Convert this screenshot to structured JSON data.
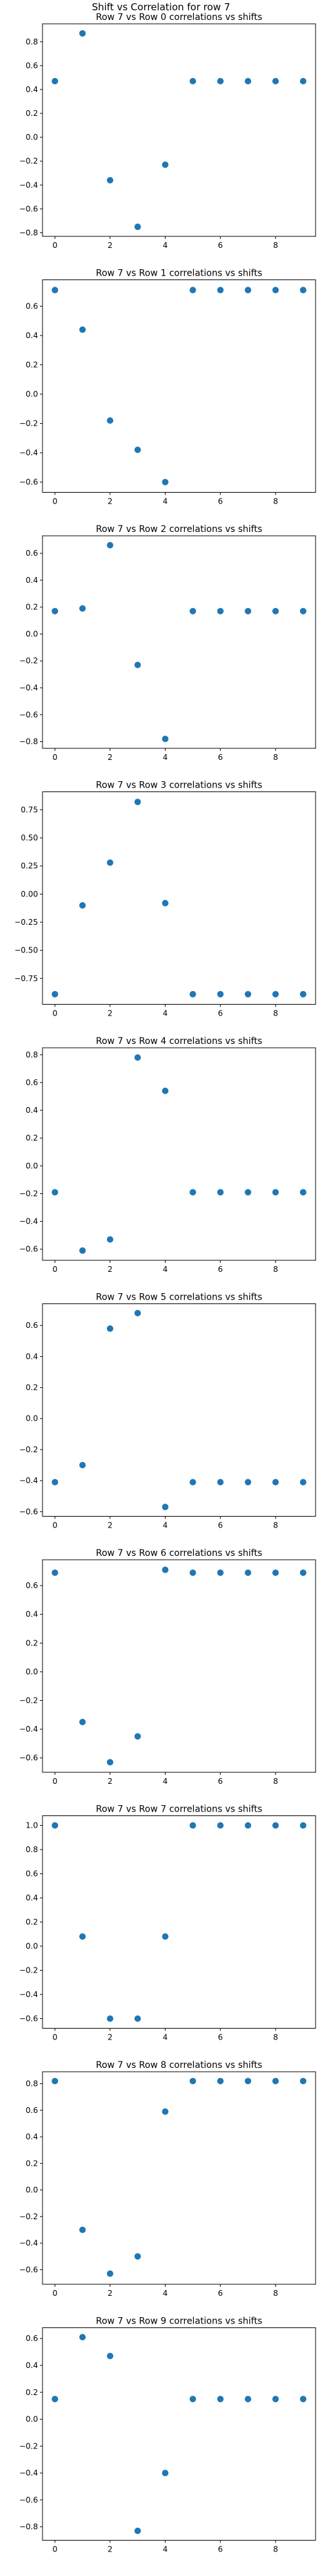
{
  "figure": {
    "suptitle": "Shift vs Correlation for row 7",
    "marker_color": "#1f77b4"
  },
  "chart_data": [
    {
      "type": "scatter",
      "title": "Row 7 vs Row 0 correlations vs shifts",
      "x": [
        0,
        1,
        2,
        3,
        4,
        5,
        6,
        7,
        8,
        9
      ],
      "y": [
        0.47,
        0.87,
        -0.36,
        -0.75,
        -0.23,
        0.47,
        0.47,
        0.47,
        0.47,
        0.47
      ],
      "xlim": [
        -0.45,
        9.45
      ],
      "ylim": [
        -0.83,
        0.95
      ],
      "xticks": [
        0,
        2,
        4,
        6,
        8
      ],
      "yticks": [
        -0.8,
        -0.6,
        -0.4,
        -0.2,
        0.0,
        0.2,
        0.4,
        0.6,
        0.8
      ],
      "ytick_labels": [
        "−0.8",
        "−0.6",
        "−0.4",
        "−0.2",
        "0.0",
        "0.2",
        "0.4",
        "0.6",
        "0.8"
      ]
    },
    {
      "type": "scatter",
      "title": "Row 7 vs Row 1 correlations vs shifts",
      "x": [
        0,
        1,
        2,
        3,
        4,
        5,
        6,
        7,
        8,
        9
      ],
      "y": [
        0.71,
        0.44,
        -0.18,
        -0.38,
        -0.6,
        0.71,
        0.71,
        0.71,
        0.71,
        0.71
      ],
      "xlim": [
        -0.45,
        9.45
      ],
      "ylim": [
        -0.67,
        0.78
      ],
      "xticks": [
        0,
        2,
        4,
        6,
        8
      ],
      "yticks": [
        -0.6,
        -0.4,
        -0.2,
        0.0,
        0.2,
        0.4,
        0.6
      ],
      "ytick_labels": [
        "−0.6",
        "−0.4",
        "−0.2",
        "0.0",
        "0.2",
        "0.4",
        "0.6"
      ]
    },
    {
      "type": "scatter",
      "title": "Row 7 vs Row 2 correlations vs shifts",
      "x": [
        0,
        1,
        2,
        3,
        4,
        5,
        6,
        7,
        8,
        9
      ],
      "y": [
        0.17,
        0.19,
        0.66,
        -0.23,
        -0.78,
        0.17,
        0.17,
        0.17,
        0.17,
        0.17
      ],
      "xlim": [
        -0.45,
        9.45
      ],
      "ylim": [
        -0.85,
        0.73
      ],
      "xticks": [
        0,
        2,
        4,
        6,
        8
      ],
      "yticks": [
        -0.8,
        -0.6,
        -0.4,
        -0.2,
        0.0,
        0.2,
        0.4,
        0.6
      ],
      "ytick_labels": [
        "−0.8",
        "−0.6",
        "−0.4",
        "−0.2",
        "0.0",
        "0.2",
        "0.4",
        "0.6"
      ]
    },
    {
      "type": "scatter",
      "title": "Row 7 vs Row 3 correlations vs shifts",
      "x": [
        0,
        1,
        2,
        3,
        4,
        5,
        6,
        7,
        8,
        9
      ],
      "y": [
        -0.89,
        -0.1,
        0.28,
        0.82,
        -0.08,
        -0.89,
        -0.89,
        -0.89,
        -0.89,
        -0.89
      ],
      "xlim": [
        -0.45,
        9.45
      ],
      "ylim": [
        -0.98,
        0.91
      ],
      "xticks": [
        0,
        2,
        4,
        6,
        8
      ],
      "yticks": [
        -0.75,
        -0.5,
        -0.25,
        0.0,
        0.25,
        0.5,
        0.75
      ],
      "ytick_labels": [
        "−0.75",
        "−0.50",
        "−0.25",
        "0.00",
        "0.25",
        "0.50",
        "0.75"
      ]
    },
    {
      "type": "scatter",
      "title": "Row 7 vs Row 4 correlations vs shifts",
      "x": [
        0,
        1,
        2,
        3,
        4,
        5,
        6,
        7,
        8,
        9
      ],
      "y": [
        -0.19,
        -0.61,
        -0.53,
        0.78,
        0.54,
        -0.19,
        -0.19,
        -0.19,
        -0.19,
        -0.19
      ],
      "xlim": [
        -0.45,
        9.45
      ],
      "ylim": [
        -0.68,
        0.85
      ],
      "xticks": [
        0,
        2,
        4,
        6,
        8
      ],
      "yticks": [
        -0.6,
        -0.4,
        -0.2,
        0.0,
        0.2,
        0.4,
        0.6,
        0.8
      ],
      "ytick_labels": [
        "−0.6",
        "−0.4",
        "−0.2",
        "0.0",
        "0.2",
        "0.4",
        "0.6",
        "0.8"
      ]
    },
    {
      "type": "scatter",
      "title": "Row 7 vs Row 5 correlations vs shifts",
      "x": [
        0,
        1,
        2,
        3,
        4,
        5,
        6,
        7,
        8,
        9
      ],
      "y": [
        -0.41,
        -0.3,
        0.58,
        0.68,
        -0.57,
        -0.41,
        -0.41,
        -0.41,
        -0.41,
        -0.41
      ],
      "xlim": [
        -0.45,
        9.45
      ],
      "ylim": [
        -0.63,
        0.74
      ],
      "xticks": [
        0,
        2,
        4,
        6,
        8
      ],
      "yticks": [
        -0.6,
        -0.4,
        -0.2,
        0.0,
        0.2,
        0.4,
        0.6
      ],
      "ytick_labels": [
        "−0.6",
        "−0.4",
        "−0.2",
        "0.0",
        "0.2",
        "0.4",
        "0.6"
      ]
    },
    {
      "type": "scatter",
      "title": "Row 7 vs Row 6 correlations vs shifts",
      "x": [
        0,
        1,
        2,
        3,
        4,
        5,
        6,
        7,
        8,
        9
      ],
      "y": [
        0.69,
        -0.35,
        -0.63,
        -0.45,
        0.71,
        0.69,
        0.69,
        0.69,
        0.69,
        0.69
      ],
      "xlim": [
        -0.45,
        9.45
      ],
      "ylim": [
        -0.7,
        0.78
      ],
      "xticks": [
        0,
        2,
        4,
        6,
        8
      ],
      "yticks": [
        -0.6,
        -0.4,
        -0.2,
        0.0,
        0.2,
        0.4,
        0.6
      ],
      "ytick_labels": [
        "−0.6",
        "−0.4",
        "−0.2",
        "0.0",
        "0.2",
        "0.4",
        "0.6"
      ]
    },
    {
      "type": "scatter",
      "title": "Row 7 vs Row 7 correlations vs shifts",
      "x": [
        0,
        1,
        2,
        3,
        4,
        5,
        6,
        7,
        8,
        9
      ],
      "y": [
        1.0,
        0.08,
        -0.6,
        -0.6,
        0.08,
        1.0,
        1.0,
        1.0,
        1.0,
        1.0
      ],
      "xlim": [
        -0.45,
        9.45
      ],
      "ylim": [
        -0.68,
        1.08
      ],
      "xticks": [
        0,
        2,
        4,
        6,
        8
      ],
      "yticks": [
        -0.6,
        -0.4,
        -0.2,
        0.0,
        0.2,
        0.4,
        0.6,
        0.8,
        1.0
      ],
      "ytick_labels": [
        "−0.6",
        "−0.4",
        "−0.2",
        "0.0",
        "0.2",
        "0.4",
        "0.6",
        "0.8",
        "1.0"
      ]
    },
    {
      "type": "scatter",
      "title": "Row 7 vs Row 8 correlations vs shifts",
      "x": [
        0,
        1,
        2,
        3,
        4,
        5,
        6,
        7,
        8,
        9
      ],
      "y": [
        0.82,
        -0.3,
        -0.63,
        -0.5,
        0.59,
        0.82,
        0.82,
        0.82,
        0.82,
        0.82
      ],
      "xlim": [
        -0.45,
        9.45
      ],
      "ylim": [
        -0.71,
        0.89
      ],
      "xticks": [
        0,
        2,
        4,
        6,
        8
      ],
      "yticks": [
        -0.6,
        -0.4,
        -0.2,
        0.0,
        0.2,
        0.4,
        0.6,
        0.8
      ],
      "ytick_labels": [
        "−0.6",
        "−0.4",
        "−0.2",
        "0.0",
        "0.2",
        "0.4",
        "0.6",
        "0.8"
      ]
    },
    {
      "type": "scatter",
      "title": "Row 7 vs Row 9 correlations vs shifts",
      "x": [
        0,
        1,
        2,
        3,
        4,
        5,
        6,
        7,
        8,
        9
      ],
      "y": [
        0.15,
        0.61,
        0.47,
        -0.83,
        -0.4,
        0.15,
        0.15,
        0.15,
        0.15,
        0.15
      ],
      "xlim": [
        -0.45,
        9.45
      ],
      "ylim": [
        -0.9,
        0.68
      ],
      "xticks": [
        0,
        2,
        4,
        6,
        8
      ],
      "yticks": [
        -0.8,
        -0.6,
        -0.4,
        -0.2,
        0.0,
        0.2,
        0.4,
        0.6
      ],
      "ytick_labels": [
        "−0.8",
        "−0.6",
        "−0.4",
        "−0.2",
        "0.0",
        "0.2",
        "0.4",
        "0.6"
      ]
    }
  ]
}
